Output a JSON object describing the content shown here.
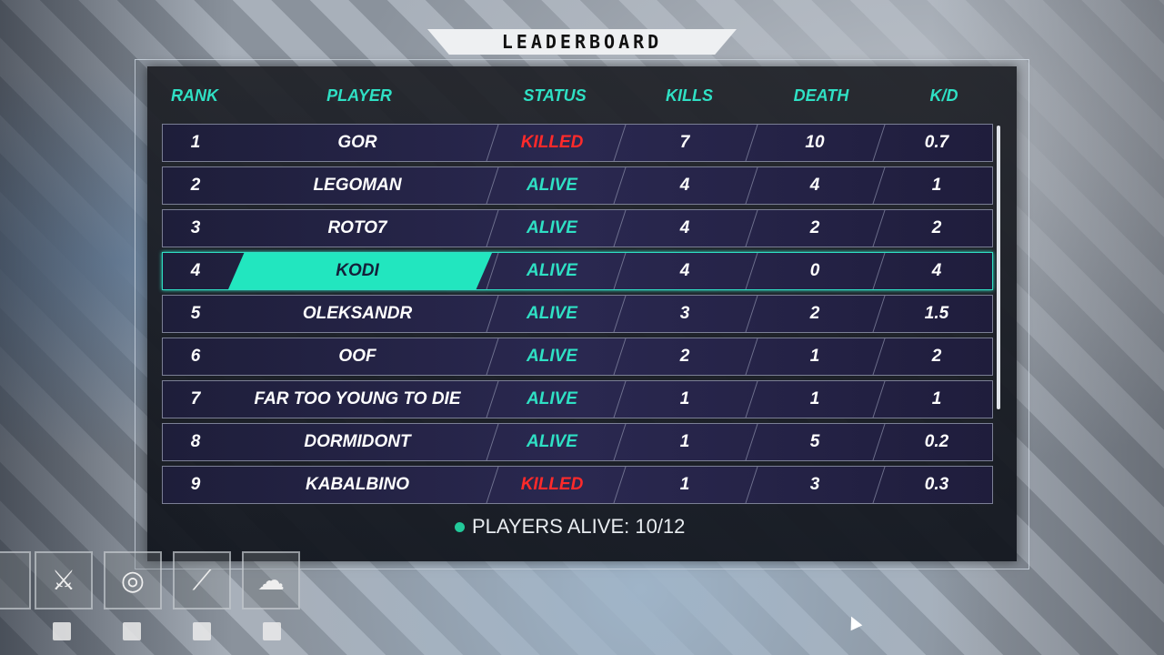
{
  "title": "LEADERBOARD",
  "headers": {
    "rank": "RANK",
    "player": "PLAYER",
    "status": "STATUS",
    "kills": "KILLS",
    "death": "DEATH",
    "kd": "K/D"
  },
  "rows": [
    {
      "rank": "1",
      "player": "GOR",
      "status": "KILLED",
      "kills": "7",
      "death": "10",
      "kd": "0.7"
    },
    {
      "rank": "2",
      "player": "LEGOMAN",
      "status": "ALIVE",
      "kills": "4",
      "death": "4",
      "kd": "1"
    },
    {
      "rank": "3",
      "player": "ROTO7",
      "status": "ALIVE",
      "kills": "4",
      "death": "2",
      "kd": "2"
    },
    {
      "rank": "4",
      "player": "KODI",
      "status": "ALIVE",
      "kills": "4",
      "death": "0",
      "kd": "4",
      "highlighted": true
    },
    {
      "rank": "5",
      "player": "OLEKSANDR",
      "status": "ALIVE",
      "kills": "3",
      "death": "2",
      "kd": "1.5"
    },
    {
      "rank": "6",
      "player": "OOF",
      "status": "ALIVE",
      "kills": "2",
      "death": "1",
      "kd": "2"
    },
    {
      "rank": "7",
      "player": "FAR TOO YOUNG TO DIE",
      "status": "ALIVE",
      "kills": "1",
      "death": "1",
      "kd": "1"
    },
    {
      "rank": "8",
      "player": "DORMIDONT",
      "status": "ALIVE",
      "kills": "1",
      "death": "5",
      "kd": "0.2"
    },
    {
      "rank": "9",
      "player": "KABALBINO",
      "status": "KILLED",
      "kills": "1",
      "death": "3",
      "kd": "0.3"
    }
  ],
  "footer": {
    "players_alive": "PLAYERS ALIVE: 10/12"
  },
  "hotbar": [
    "sword-icon",
    "shield-icon",
    "wand-icon",
    "hat-icon"
  ],
  "colors": {
    "accent": "#2fe0c4",
    "killed": "#ff2a2a",
    "alive_dot": "#22c99a"
  }
}
